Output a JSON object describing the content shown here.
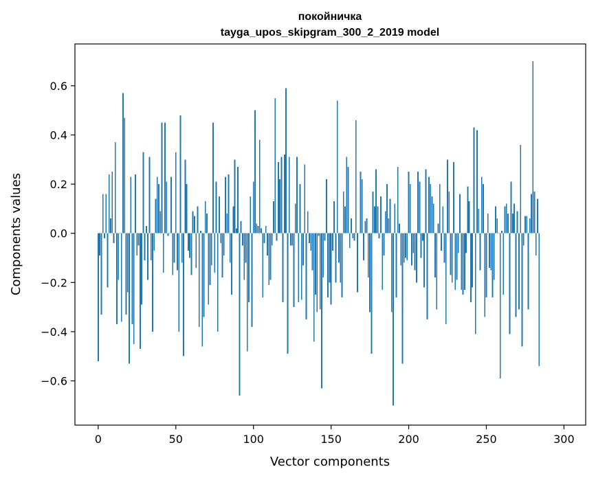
{
  "chart_data": {
    "type": "bar",
    "title_line1": "покойничка",
    "title_line2": "tayga_upos_skipgram_300_2_2019 model",
    "xlabel": "Vector components",
    "ylabel": "Components values",
    "xlim": [
      -15,
      314
    ],
    "ylim": [
      -0.78,
      0.77
    ],
    "xticks": [
      0,
      50,
      100,
      150,
      200,
      250,
      300
    ],
    "xtick_labels": [
      "0",
      "50",
      "100",
      "150",
      "200",
      "250",
      "300"
    ],
    "yticks": [
      -0.6,
      -0.4,
      -0.2,
      0.0,
      0.2,
      0.4,
      0.6
    ],
    "ytick_labels": [
      "−0.6",
      "−0.4",
      "−0.2",
      "0.0",
      "0.2",
      "0.4",
      "0.6"
    ],
    "bar_color": "#1f77b4",
    "grid": false,
    "values": [
      -0.52,
      -0.09,
      -0.33,
      0.16,
      -0.02,
      0.16,
      -0.22,
      0.24,
      0.06,
      0.25,
      -0.04,
      0.37,
      -0.37,
      -0.19,
      0.0,
      -0.36,
      0.57,
      0.47,
      -0.33,
      -0.24,
      -0.53,
      0.23,
      -0.37,
      -0.45,
      0.24,
      -0.09,
      -0.05,
      -0.47,
      -0.29,
      0.33,
      -0.11,
      0.03,
      -0.19,
      0.31,
      -0.11,
      -0.4,
      -0.07,
      0.14,
      0.23,
      0.2,
      0.09,
      0.45,
      -0.16,
      0.45,
      0.21,
      -0.01,
      0.0,
      0.23,
      -0.17,
      -0.12,
      0.33,
      -0.15,
      -0.4,
      0.48,
      -0.12,
      -0.5,
      0.3,
      0.2,
      -0.07,
      -0.1,
      -0.17,
      0.09,
      0.07,
      -0.14,
      0.11,
      -0.38,
      0.01,
      -0.46,
      -0.34,
      0.13,
      0.08,
      -0.29,
      -0.21,
      -0.13,
      0.45,
      -0.16,
      0.21,
      -0.4,
      0.15,
      -0.04,
      -0.18,
      -0.09,
      0.23,
      0.08,
      0.24,
      -0.12,
      -0.25,
      0.11,
      0.3,
      0.02,
      0.27,
      -0.66,
      0.05,
      -0.05,
      -0.19,
      -0.12,
      -0.48,
      -0.28,
      0.15,
      -0.38,
      0.21,
      0.5,
      0.04,
      0.03,
      0.38,
      0.02,
      -0.26,
      -0.04,
      0.03,
      -0.09,
      -0.21,
      -0.19,
      -0.05,
      0.13,
      0.55,
      -0.03,
      0.29,
      0.22,
      0.31,
      -0.28,
      0.32,
      0.59,
      -0.49,
      0.31,
      -0.05,
      -0.05,
      -0.3,
      0.12,
      0.31,
      -0.28,
      0.2,
      -0.27,
      -0.13,
      0.28,
      -0.35,
      0.09,
      -0.04,
      -0.07,
      -0.15,
      -0.44,
      -0.25,
      -0.32,
      -0.01,
      -0.31,
      -0.63,
      -0.18,
      -0.03,
      0.22,
      -0.26,
      -0.2,
      -0.29,
      -0.07,
      0.13,
      -0.2,
      0.54,
      -0.12,
      -0.2,
      -0.26,
      0.17,
      0.11,
      0.31,
      0.27,
      -0.06,
      0.06,
      -0.02,
      -0.03,
      0.46,
      -0.24,
      0.0,
      0.25,
      0.22,
      -0.11,
      0.05,
      0.06,
      -0.18,
      -0.32,
      -0.49,
      0.17,
      0.11,
      0.26,
      0.11,
      -0.02,
      0.15,
      -0.23,
      -0.09,
      0.09,
      0.2,
      0.06,
      0.14,
      -0.32,
      -0.7,
      0.12,
      -0.26,
      0.27,
      0.04,
      -0.13,
      -0.53,
      -0.12,
      -0.1,
      -0.11,
      0.25,
      0.2,
      -0.13,
      -0.08,
      -0.15,
      -0.2,
      0.25,
      0.21,
      -0.1,
      -0.03,
      -0.22,
      0.26,
      -0.35,
      0.23,
      0.2,
      0.15,
      0.12,
      -0.18,
      -0.31,
      0.04,
      0.2,
      -0.07,
      0.11,
      -0.12,
      -0.37,
      0.3,
      0.17,
      -0.17,
      -0.2,
      0.29,
      -0.23,
      -0.19,
      -0.08,
      0.16,
      -0.23,
      -0.25,
      -0.23,
      -0.08,
      0.19,
      0.13,
      -0.28,
      -0.22,
      0.43,
      -0.41,
      0.42,
      0.1,
      -0.15,
      0.23,
      0.2,
      -0.34,
      -0.26,
      0.08,
      -0.14,
      -0.15,
      -0.26,
      -0.19,
      0.11,
      0.06,
      0.0,
      -0.59,
      0.01,
      -0.25,
      0.11,
      0.12,
      0.08,
      -0.41,
      0.21,
      0.08,
      0.12,
      -0.34,
      0.09,
      -0.31,
      0.36,
      -0.46,
      -0.05,
      0.07,
      0.07,
      -0.31,
      0.06,
      0.16,
      0.7,
      0.17,
      -0.09,
      0.14,
      -0.54
    ]
  }
}
